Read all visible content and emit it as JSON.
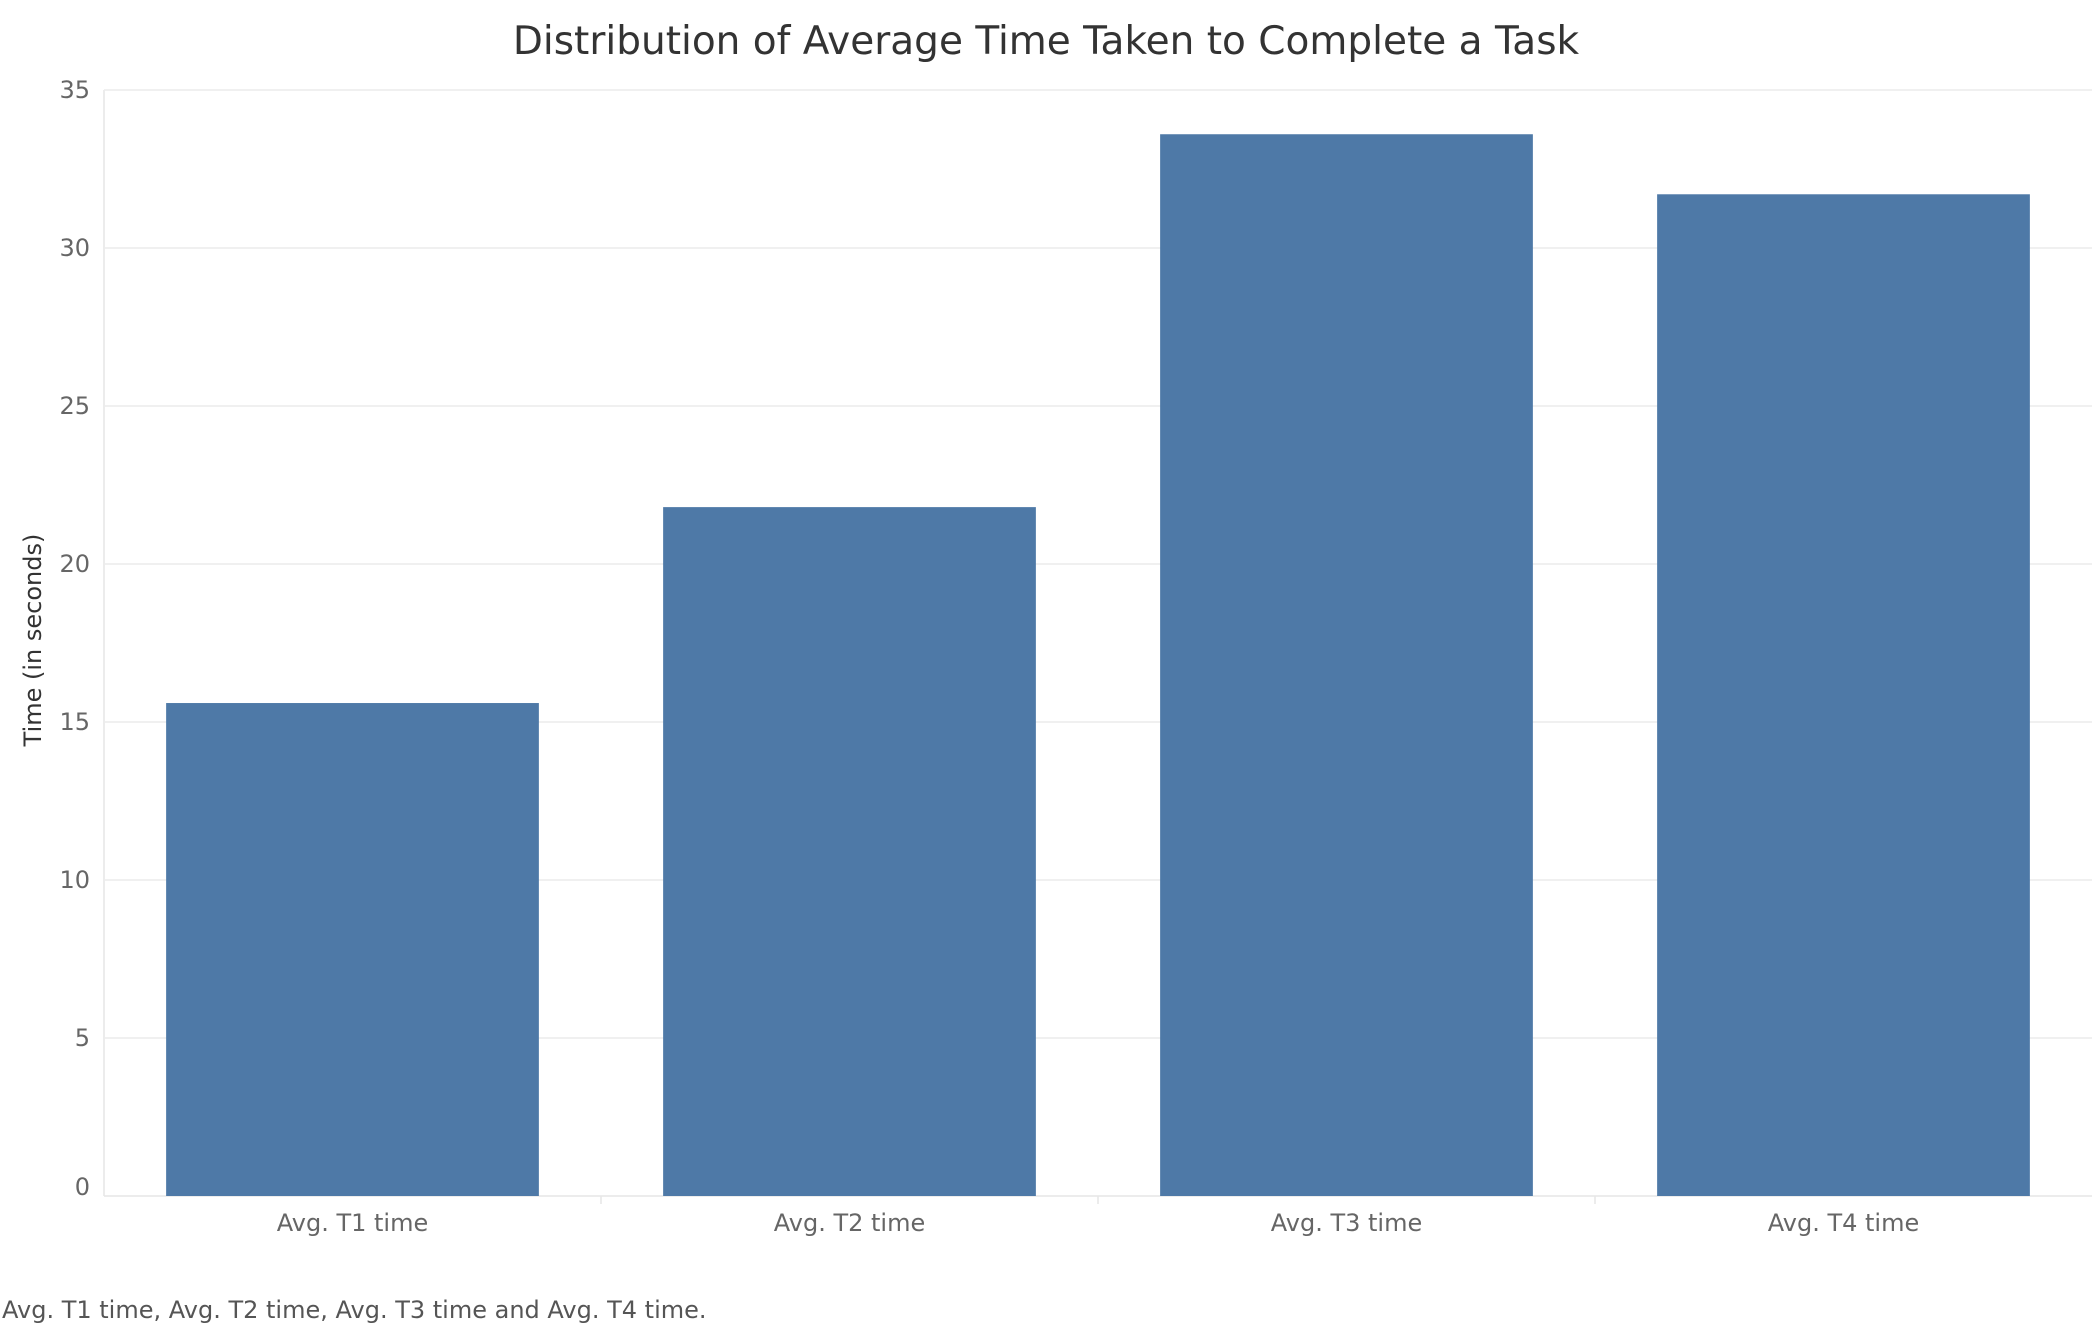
{
  "chart_data": {
    "type": "bar",
    "title": "Distribution of Average Time Taken to Complete a Task",
    "categories": [
      "Avg. T1 time",
      "Avg. T2 time",
      "Avg. T3 time",
      "Avg. T4 time"
    ],
    "values": [
      15.6,
      21.8,
      33.6,
      31.7
    ],
    "ylabel": "Time (in seconds)",
    "xlabel": "",
    "ylim": [
      0,
      35
    ],
    "yticks": [
      0,
      5,
      10,
      15,
      20,
      25,
      30,
      35
    ],
    "grid": true,
    "legend": "none",
    "bar_color": "#4e79a7",
    "caption": "Avg. T1 time, Avg. T2 time, Avg. T3 time and Avg. T4 time."
  }
}
